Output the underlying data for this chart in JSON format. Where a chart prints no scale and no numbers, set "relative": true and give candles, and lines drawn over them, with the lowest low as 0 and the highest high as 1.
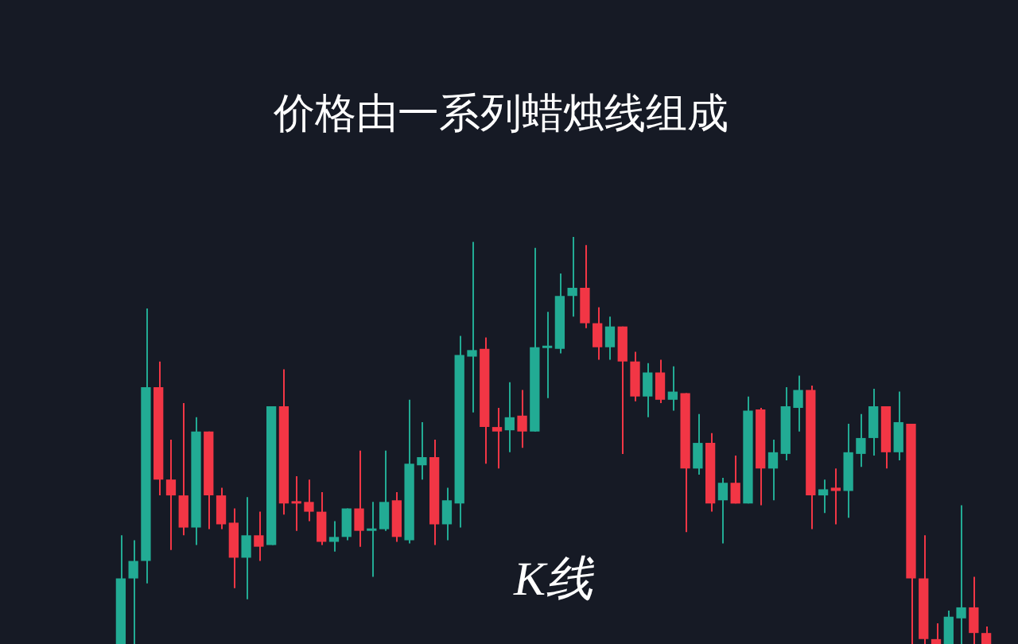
{
  "chart_data": {
    "type": "candlestick",
    "title": "价格由一系列蜡烛线组成",
    "annotations": [
      "K线"
    ],
    "relative": true,
    "categories": [
      null,
      null,
      null,
      null,
      null,
      null,
      null,
      null,
      null,
      null,
      null,
      null,
      null,
      null,
      null,
      null,
      null,
      null,
      null,
      null,
      null,
      null,
      null,
      null,
      null,
      null,
      null,
      null,
      null,
      null,
      null,
      null,
      null,
      null,
      null,
      null,
      null,
      null,
      null,
      null,
      null,
      null,
      null,
      null,
      null,
      null,
      null,
      null,
      null,
      null,
      null,
      null,
      null,
      null,
      null,
      null,
      null,
      null,
      null,
      null,
      null,
      null,
      null,
      null,
      null,
      null,
      null,
      null,
      null,
      null
    ],
    "ohlc": [
      [
        0,
        0.267,
        0,
        0.161
      ],
      [
        0.161,
        0.255,
        0,
        0.204
      ],
      [
        0.204,
        0.824,
        0.149,
        0.631
      ],
      [
        0.631,
        0.694,
        0.365,
        0.404
      ],
      [
        0.404,
        0.502,
        0.231,
        0.365
      ],
      [
        0.365,
        0.592,
        0.267,
        0.286
      ],
      [
        0.286,
        0.557,
        0.243,
        0.522
      ],
      [
        0.522,
        0.522,
        0.282,
        0.365
      ],
      [
        0.365,
        0.384,
        0.282,
        0.294
      ],
      [
        0.298,
        0.333,
        0.137,
        0.212
      ],
      [
        0.212,
        0.361,
        0.11,
        0.267
      ],
      [
        0.267,
        0.325,
        0.204,
        0.239
      ],
      [
        0.243,
        0.584,
        0.243,
        0.584
      ],
      [
        0.584,
        0.675,
        0.318,
        0.345
      ],
      [
        0.349,
        0.412,
        0.278,
        0.345
      ],
      [
        0.349,
        0.404,
        0.302,
        0.325
      ],
      [
        0.325,
        0.373,
        0.243,
        0.251
      ],
      [
        0.251,
        0.302,
        0.227,
        0.263
      ],
      [
        0.263,
        0.333,
        0.255,
        0.333
      ],
      [
        0.333,
        0.475,
        0.239,
        0.278
      ],
      [
        0.278,
        0.349,
        0.165,
        0.282
      ],
      [
        0.282,
        0.475,
        0.278,
        0.349
      ],
      [
        0.353,
        0.373,
        0.251,
        0.263
      ],
      [
        0.255,
        0.6,
        0.247,
        0.443
      ],
      [
        0.439,
        0.545,
        0.404,
        0.459
      ],
      [
        0.459,
        0.502,
        0.243,
        0.294
      ],
      [
        0.294,
        0.384,
        0.255,
        0.353
      ],
      [
        0.345,
        0.757,
        0.286,
        0.71
      ],
      [
        0.706,
        0.988,
        0.569,
        0.722
      ],
      [
        0.725,
        0.753,
        0.443,
        0.533
      ],
      [
        0.533,
        0.58,
        0.431,
        0.522
      ],
      [
        0.525,
        0.643,
        0.471,
        0.557
      ],
      [
        0.561,
        0.624,
        0.482,
        0.522
      ],
      [
        0.522,
        0.973,
        0.522,
        0.729
      ],
      [
        0.727,
        0.816,
        0.604,
        0.729
      ],
      [
        0.725,
        0.91,
        0.714,
        0.855
      ],
      [
        0.855,
        1,
        0.804,
        0.875
      ],
      [
        0.875,
        0.98,
        0.776,
        0.788
      ],
      [
        0.788,
        0.827,
        0.698,
        0.729
      ],
      [
        0.729,
        0.804,
        0.698,
        0.78
      ],
      [
        0.78,
        0.78,
        0.467,
        0.694
      ],
      [
        0.694,
        0.718,
        0.596,
        0.608
      ],
      [
        0.608,
        0.69,
        0.557,
        0.667
      ],
      [
        0.667,
        0.698,
        0.592,
        0.6
      ],
      [
        0.6,
        0.682,
        0.573,
        0.62
      ],
      [
        0.616,
        0.616,
        0.275,
        0.431
      ],
      [
        0.431,
        0.565,
        0.416,
        0.494
      ],
      [
        0.494,
        0.518,
        0.325,
        0.345
      ],
      [
        0.353,
        0.408,
        0.247,
        0.396
      ],
      [
        0.396,
        0.463,
        0.345,
        0.345
      ],
      [
        0.345,
        0.608,
        0.345,
        0.573
      ],
      [
        0.576,
        0.58,
        0.341,
        0.431
      ],
      [
        0.431,
        0.502,
        0.353,
        0.471
      ],
      [
        0.467,
        0.631,
        0.451,
        0.584
      ],
      [
        0.58,
        0.659,
        0.522,
        0.624
      ],
      [
        0.624,
        0.635,
        0.282,
        0.365
      ],
      [
        0.365,
        0.404,
        0.322,
        0.38
      ],
      [
        0.384,
        0.431,
        0.294,
        0.376
      ],
      [
        0.376,
        0.541,
        0.31,
        0.471
      ],
      [
        0.467,
        0.565,
        0.435,
        0.506
      ],
      [
        0.506,
        0.627,
        0.463,
        0.584
      ],
      [
        0.584,
        0.584,
        0.431,
        0.471
      ],
      [
        0.471,
        0.62,
        0.451,
        0.545
      ],
      [
        0.541,
        0.541,
        0,
        0.161
      ],
      [
        0.161,
        0.267,
        0,
        0.012
      ],
      [
        0.012,
        0.051,
        0,
        0
      ],
      [
        0,
        0.082,
        0,
        0.067
      ],
      [
        0.063,
        0.341,
        0,
        0.09
      ],
      [
        0.09,
        0.165,
        0,
        0.027
      ],
      [
        0.027,
        0.043,
        0,
        0
      ]
    ],
    "colors": [
      "#22ab94",
      "#22ab94",
      "#22ab94",
      "#f23645",
      "#f23645",
      "#f23645",
      "#22ab94",
      "#f23645",
      "#f23645",
      "#f23645",
      "#22ab94",
      "#f23645",
      "#22ab94",
      "#f23645",
      "#f23645",
      "#f23645",
      "#f23645",
      "#22ab94",
      "#22ab94",
      "#f23645",
      "#22ab94",
      "#22ab94",
      "#f23645",
      "#22ab94",
      "#22ab94",
      "#f23645",
      "#22ab94",
      "#22ab94",
      "#22ab94",
      "#f23645",
      "#f23645",
      "#22ab94",
      "#f23645",
      "#22ab94",
      "#22ab94",
      "#22ab94",
      "#22ab94",
      "#f23645",
      "#f23645",
      "#22ab94",
      "#f23645",
      "#f23645",
      "#22ab94",
      "#f23645",
      "#22ab94",
      "#f23645",
      "#22ab94",
      "#f23645",
      "#22ab94",
      "#f23645",
      "#22ab94",
      "#f23645",
      "#22ab94",
      "#22ab94",
      "#22ab94",
      "#f23645",
      "#22ab94",
      "#f23645",
      "#22ab94",
      "#22ab94",
      "#22ab94",
      "#f23645",
      "#22ab94",
      "#f23645",
      "#f23645",
      "#f23645",
      "#22ab94",
      "#22ab94",
      "#f23645",
      "#f23645"
    ]
  }
}
